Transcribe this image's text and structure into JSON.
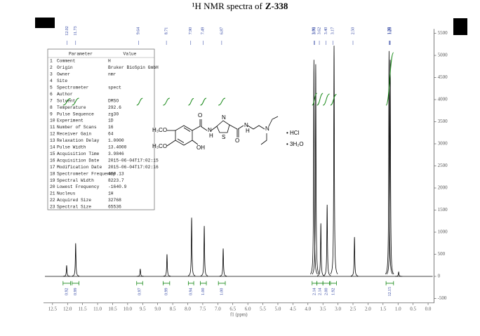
{
  "chart_data": {
    "type": "nmr",
    "title": "¹H NMR spectra of",
    "title_compound": "Z-338",
    "x_label": "f1 (ppm)",
    "xlim": [
      12.8,
      -0.2
    ],
    "xticks": [
      {
        "value": 12.5,
        "label": "12.5"
      },
      {
        "value": 12,
        "label": "12.0"
      },
      {
        "value": 11.5,
        "label": "11.5"
      },
      {
        "value": 11,
        "label": "11.0"
      },
      {
        "value": 10.5,
        "label": "10.5"
      },
      {
        "value": 10,
        "label": "10.0"
      },
      {
        "value": 9.5,
        "label": "9.5"
      },
      {
        "value": 9,
        "label": "9.0"
      },
      {
        "value": 8.5,
        "label": "8.5"
      },
      {
        "value": 8,
        "label": "8.0"
      },
      {
        "value": 7.5,
        "label": "7.5"
      },
      {
        "value": 7,
        "label": "7.0"
      },
      {
        "value": 6.5,
        "label": "6.5"
      },
      {
        "value": 6,
        "label": "6.0"
      },
      {
        "value": 5.5,
        "label": "5.5"
      },
      {
        "value": 5,
        "label": "5.0"
      },
      {
        "value": 4.5,
        "label": "4.5"
      },
      {
        "value": 4,
        "label": "4.0"
      },
      {
        "value": 3.5,
        "label": "3.5"
      },
      {
        "value": 3,
        "label": "3.0"
      },
      {
        "value": 2.5,
        "label": "2.5"
      },
      {
        "value": 2,
        "label": "2.0"
      },
      {
        "value": 1.5,
        "label": "1.5"
      },
      {
        "value": 1,
        "label": "1.0"
      },
      {
        "value": 0.5,
        "label": "0.5"
      },
      {
        "value": 0,
        "label": "0.0"
      }
    ],
    "ylim": [
      -600,
      5600
    ],
    "yticks": [
      -500,
      0,
      500,
      1000,
      1500,
      2000,
      2500,
      3000,
      3500,
      4000,
      4500,
      5000,
      5500
    ],
    "color": "#000000",
    "peaks": {
      "ppm": [
        12.03,
        11.73,
        9.58,
        8.69,
        7.87,
        7.45,
        6.82,
        3.8,
        3.74,
        3.57,
        3.36,
        3.13,
        2.45,
        1.3,
        1.26,
        0.98
      ],
      "heights": [
        250,
        750,
        170,
        500,
        1330,
        1140,
        630,
        4900,
        4800,
        1200,
        1620,
        5220,
        890,
        5100,
        4900,
        100
      ]
    },
    "peak_labels": [
      {
        "value": 12.02,
        "label": "12.02"
      },
      {
        "value": 11.73,
        "label": "11.73"
      },
      {
        "value": 9.64,
        "label": "9.64"
      },
      {
        "value": 8.71,
        "label": "8.71"
      },
      {
        "value": 7.9,
        "label": "7.90"
      },
      {
        "value": 7.49,
        "label": "7.49"
      },
      {
        "value": 6.87,
        "label": "6.87"
      },
      {
        "value": 3.8,
        "label": "3.80"
      },
      {
        "value": 3.78,
        "label": "3.78"
      },
      {
        "value": 3.62,
        "label": "3.62"
      },
      {
        "value": 3.4,
        "label": "3.40"
      },
      {
        "value": 3.17,
        "label": "3.17"
      },
      {
        "value": 2.5,
        "label": "2.50"
      },
      {
        "value": 1.3,
        "label": "1.30"
      },
      {
        "value": 1.28,
        "label": "1.28"
      },
      {
        "value": 1.26,
        "label": "1.26"
      }
    ],
    "integrals": {
      "ranges": [
        [
          12.15,
          11.9
        ],
        [
          11.85,
          11.62
        ],
        [
          9.7,
          9.5
        ],
        [
          8.82,
          8.6
        ],
        [
          7.98,
          7.8
        ],
        [
          7.58,
          7.38
        ],
        [
          6.98,
          6.75
        ],
        [
          3.86,
          3.7
        ],
        [
          3.7,
          3.5
        ],
        [
          3.5,
          3.28
        ],
        [
          3.25,
          3.05
        ],
        [
          1.4,
          1.15
        ]
      ],
      "values": [
        0.92,
        0.99,
        0.97,
        0.99,
        0.94,
        1,
        1,
        2.14,
        2.14,
        2,
        1.92,
        12.15
      ],
      "value_labels": [
        "0.92",
        "0.99",
        "0.97",
        "0.99",
        "0.94",
        "1.00",
        "1.00",
        "2.14",
        "2.14",
        "2.00",
        "1.92",
        "12.15"
      ],
      "color": "#1a8a1a"
    },
    "parameters": {
      "header": [
        "Parameter",
        "Value"
      ],
      "rows": [
        [
          "1",
          "Comment",
          "H"
        ],
        [
          "2",
          "Origin",
          "Bruker BioSpin GmbH"
        ],
        [
          "3",
          "Owner",
          "nmr"
        ],
        [
          "4",
          "Site"
        ],
        [
          "5",
          "Spectrometer",
          "spect"
        ],
        [
          "6",
          "Author"
        ],
        [
          "7",
          "Solvent",
          "DMSO"
        ],
        [
          "8",
          "Temperature",
          "292.6"
        ],
        [
          "9",
          "Pulse Sequence",
          "zg30"
        ],
        [
          "10",
          "Experiment",
          "1D"
        ],
        [
          "11",
          "Number of Scans",
          "16"
        ],
        [
          "12",
          "Receiver Gain",
          "64"
        ],
        [
          "13",
          "Relaxation Delay",
          "1.0000"
        ],
        [
          "14",
          "Pulse Width",
          "13.4000"
        ],
        [
          "15",
          "Acquisition Time",
          "3.9846"
        ],
        [
          "16",
          "Acquisition Date",
          "2015-06-04T17:02:15"
        ],
        [
          "17",
          "Modification Date",
          "2015-06-04T17:02:16"
        ],
        [
          "18",
          "Spectrometer Frequency",
          "400.13"
        ],
        [
          "19",
          "Spectral Width",
          "8223.7"
        ],
        [
          "20",
          "Lowest Frequency",
          "-1640.9"
        ],
        [
          "21",
          "Nucleus",
          "1H"
        ],
        [
          "22",
          "Acquired Size",
          "32768"
        ],
        [
          "23",
          "Spectral Size",
          "65536"
        ]
      ]
    },
    "structure": {
      "labels": [
        "H₃CO",
        "H₃CO",
        "OH",
        "O",
        "N",
        "H",
        "S",
        "N",
        "O",
        "N",
        "H",
        "N",
        "• HCl",
        "• 3H₂O"
      ]
    }
  }
}
